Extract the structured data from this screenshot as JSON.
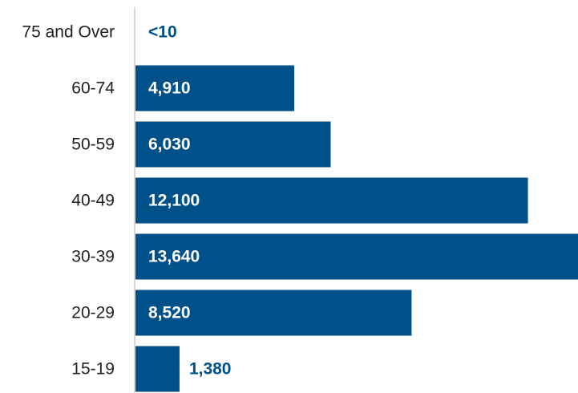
{
  "chart_data": {
    "type": "bar",
    "orientation": "horizontal",
    "categories": [
      "75 and Over",
      "60-74",
      "50-59",
      "40-49",
      "30-39",
      "20-29",
      "15-19"
    ],
    "values": [
      null,
      4910,
      6030,
      12100,
      13640,
      8520,
      1380
    ],
    "value_labels": [
      "<10",
      "4,910",
      "6,030",
      "12,100",
      "13,640",
      "8,520",
      "1,380"
    ],
    "title": "",
    "xlabel": "",
    "ylabel": "",
    "xlim": [
      0,
      13640
    ],
    "grid": false,
    "legend": "none",
    "colors": {
      "bar": "#00508a",
      "label_inside": "#ffffff",
      "label_outside": "#00508a",
      "axis_line": "#c8c8c8",
      "category_text": "#222222"
    }
  }
}
